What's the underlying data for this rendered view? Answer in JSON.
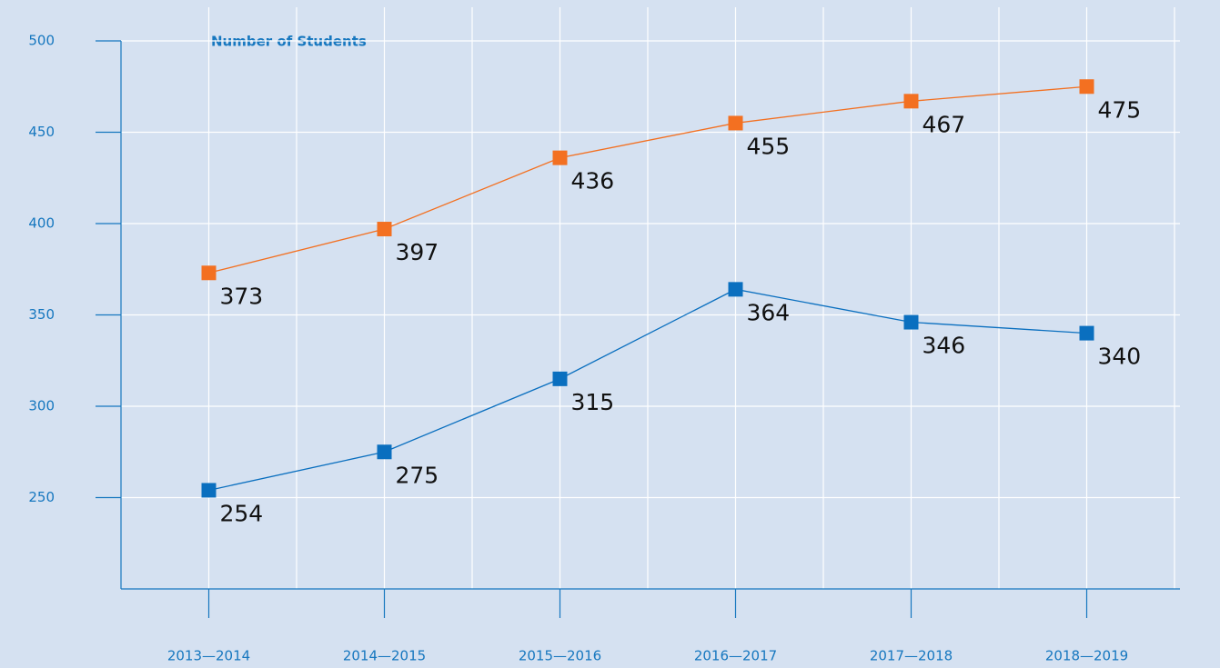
{
  "chart_data": {
    "type": "line",
    "title": "Number of Students",
    "categories": [
      "2013—2014",
      "2014—2015",
      "2015—2016",
      "2016—2017",
      "2017—2018",
      "2018—2019"
    ],
    "series": [
      {
        "color": "#f37021",
        "values": [
          373,
          397,
          436,
          455,
          467,
          475
        ]
      },
      {
        "color": "#0a6fbf",
        "values": [
          254,
          275,
          315,
          364,
          346,
          340
        ]
      }
    ],
    "ylim": [
      200,
      500
    ],
    "yticks": [
      250,
      300,
      350,
      400,
      450,
      500
    ],
    "grid": true
  }
}
